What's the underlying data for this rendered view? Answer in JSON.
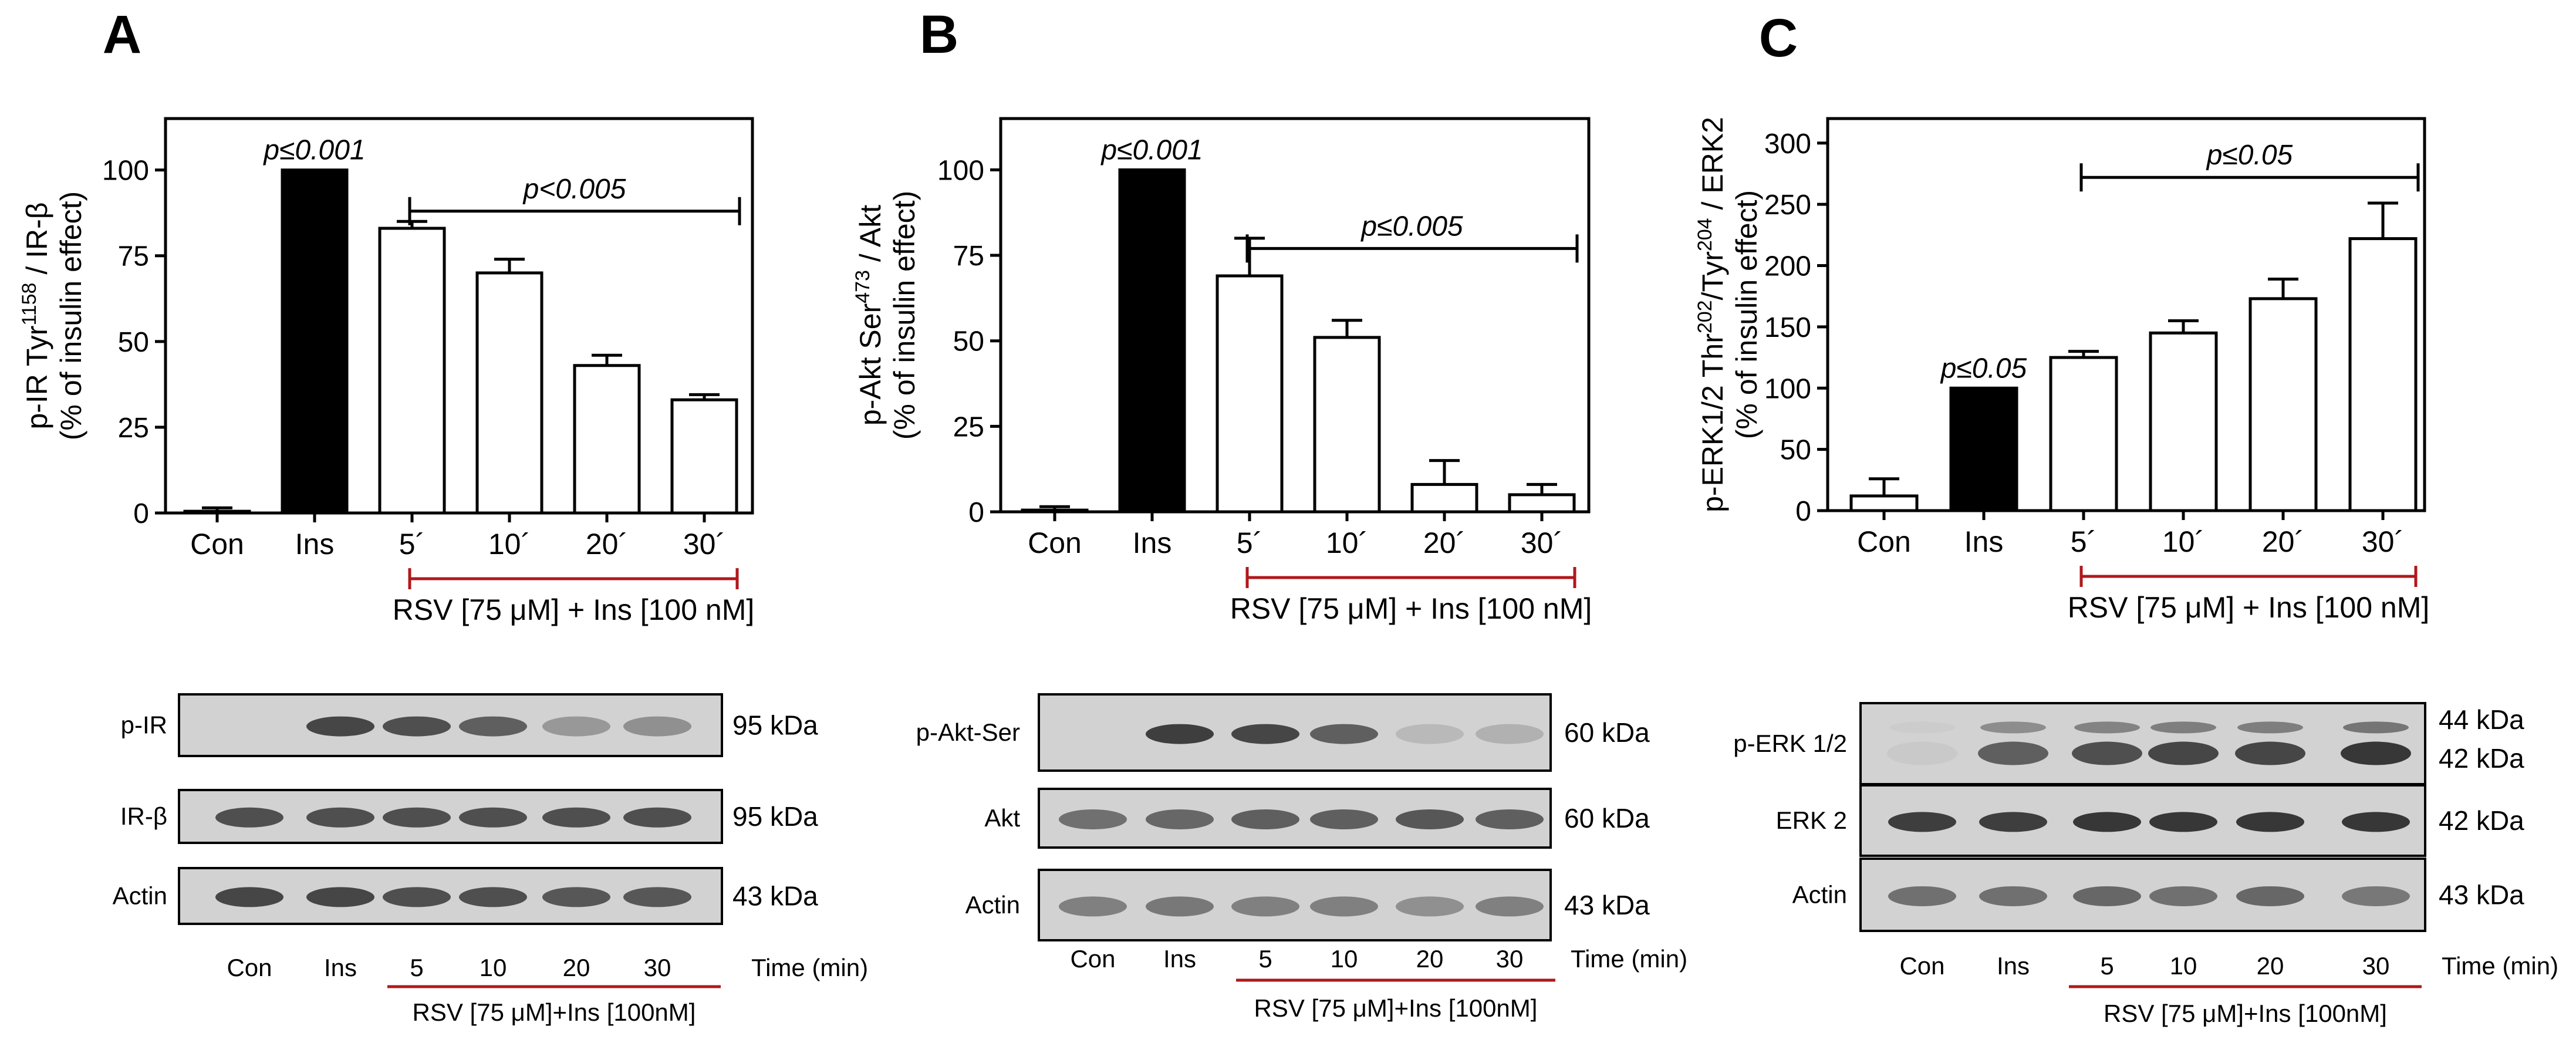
{
  "panels": [
    {
      "letter": "A",
      "ylabel_line1": "p-IR Tyr",
      "ylabel_sup": "1158",
      "ylabel_line1_tail": " / IR-β",
      "ylabel_line2": "(% of insulin effect)",
      "rsv_label": "RSV [75 μM] + Ins [100 nM]",
      "ins_p": "p≤0.001",
      "bracket_p": "p<0.005",
      "blot_rows": [
        {
          "label": "p-IR",
          "kda": "95 kDa"
        },
        {
          "label": "IR-β",
          "kda": "95 kDa"
        },
        {
          "label": "Actin",
          "kda": "43 kDa"
        }
      ],
      "blot_cats": [
        "Con",
        "Ins",
        "5",
        "10",
        "20",
        "30"
      ],
      "time_label": "Time  (min)",
      "blot_rsv": "RSV [75 μM]+Ins [100nM]"
    },
    {
      "letter": "B",
      "ylabel_line1": "p-Akt Ser",
      "ylabel_sup": "473",
      "ylabel_line1_tail": " / Akt",
      "ylabel_line2": "(% of insulin effect)",
      "rsv_label": "RSV [75 μM] + Ins [100 nM]",
      "ins_p": "p≤0.001",
      "bracket_p": "p≤0.005",
      "blot_rows": [
        {
          "label": "p-Akt-Ser",
          "kda": "60 kDa"
        },
        {
          "label": "Akt",
          "kda": "60 kDa"
        },
        {
          "label": "Actin",
          "kda": "43 kDa"
        }
      ],
      "blot_cats": [
        "Con",
        "Ins",
        "5",
        "10",
        "20",
        "30"
      ],
      "time_label": "Time (min)",
      "blot_rsv": "RSV [75 μM]+Ins [100nM]"
    },
    {
      "letter": "C",
      "ylabel_line1": "p-ERK1/2 Thr",
      "ylabel_sup": "202",
      "ylabel_mid": "/Tyr",
      "ylabel_sup2": "204",
      "ylabel_line1_tail": " / ERK2",
      "ylabel_line2": "(% of insulin effect)",
      "rsv_label": "RSV [75 μM] + Ins [100 nM]",
      "ins_p": "p≤0.05",
      "bracket_p": "p≤0.05",
      "blot_rows": [
        {
          "label": "p-ERK 1/2",
          "kda": "44 kDa",
          "kda2": "42 kDa"
        },
        {
          "label": "ERK 2",
          "kda": "42 kDa"
        },
        {
          "label": "Actin",
          "kda": "43 kDa"
        }
      ],
      "blot_cats": [
        "Con",
        "Ins",
        "5",
        "10",
        "20",
        "30"
      ],
      "time_label": "Time (min)",
      "blot_rsv": "RSV [75 μM]+Ins [100nM]"
    }
  ],
  "chart_data": [
    {
      "type": "bar",
      "title": "A",
      "categories": [
        "Con",
        "Ins",
        "5´",
        "10´",
        "20´",
        "30´"
      ],
      "values": [
        0.5,
        100,
        83,
        70,
        43,
        33
      ],
      "errors": [
        1,
        0,
        2,
        4,
        3,
        1.5
      ],
      "fills": [
        "#ffffff",
        "#000000",
        "#ffffff",
        "#ffffff",
        "#ffffff",
        "#ffffff"
      ],
      "ylim": [
        0,
        115
      ],
      "yticks": [
        0,
        25,
        50,
        75,
        100
      ],
      "ylabel": "p-IR Tyr1158 / IR-β (% of insulin effect)"
    },
    {
      "type": "bar",
      "title": "B",
      "categories": [
        "Con",
        "Ins",
        "5´",
        "10´",
        "20´",
        "30´"
      ],
      "values": [
        0.5,
        100,
        69,
        51,
        8,
        5
      ],
      "errors": [
        1,
        0,
        11,
        5,
        7,
        3
      ],
      "fills": [
        "#ffffff",
        "#000000",
        "#ffffff",
        "#ffffff",
        "#ffffff",
        "#ffffff"
      ],
      "ylim": [
        0,
        115
      ],
      "yticks": [
        0,
        25,
        50,
        75,
        100
      ],
      "ylabel": "p-Akt Ser473 / Akt (% of insulin effect)"
    },
    {
      "type": "bar",
      "title": "C",
      "categories": [
        "Con",
        "Ins",
        "5´",
        "10´",
        "20´",
        "30´"
      ],
      "values": [
        12,
        100,
        125,
        145,
        173,
        222
      ],
      "errors": [
        14,
        0,
        5,
        10,
        16,
        29
      ],
      "fills": [
        "#ffffff",
        "#000000",
        "#ffffff",
        "#ffffff",
        "#ffffff",
        "#ffffff"
      ],
      "ylim": [
        0,
        320
      ],
      "yticks": [
        0,
        50,
        100,
        150,
        200,
        250,
        300
      ],
      "ylabel": "p-ERK1/2 Thr202/Tyr204 / ERK2 (% of insulin effect)"
    }
  ],
  "blot_bands": [
    [
      [
        0.0,
        0.85,
        0.8,
        0.7,
        0.35,
        0.4
      ],
      [
        0.8,
        0.8,
        0.8,
        0.8,
        0.8,
        0.8
      ],
      [
        0.85,
        0.85,
        0.8,
        0.8,
        0.75,
        0.75
      ]
    ],
    [
      [
        0.0,
        0.9,
        0.85,
        0.7,
        0.15,
        0.2
      ],
      [
        0.6,
        0.65,
        0.7,
        0.7,
        0.75,
        0.7
      ],
      [
        0.5,
        0.55,
        0.5,
        0.5,
        0.4,
        0.5
      ]
    ],
    [
      [
        0.05,
        0.7,
        0.8,
        0.85,
        0.85,
        0.95
      ],
      [
        0.9,
        0.9,
        0.95,
        0.95,
        0.95,
        0.95
      ],
      [
        0.6,
        0.6,
        0.65,
        0.6,
        0.65,
        0.55
      ]
    ]
  ],
  "colors": {
    "bracket_red": "#b0181b",
    "blot_bg": "#d2d2d2",
    "band": "#2e2e2e"
  }
}
